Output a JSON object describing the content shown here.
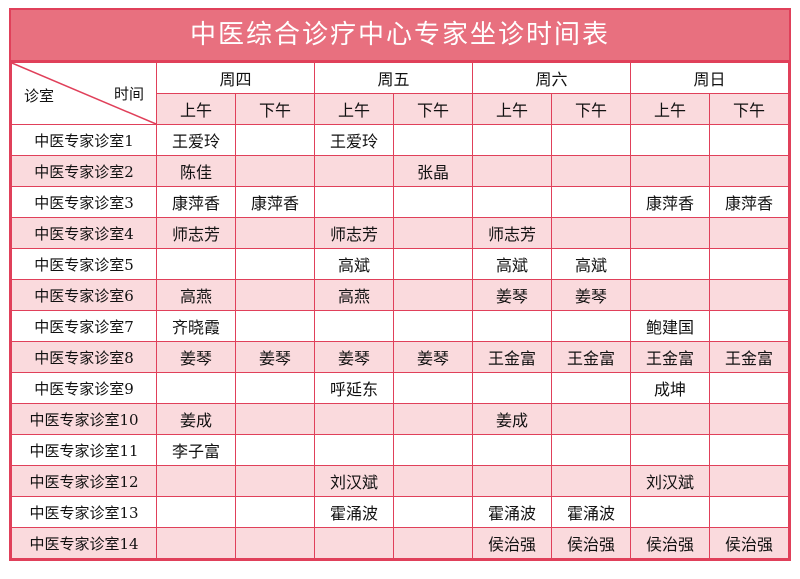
{
  "title": "中医综合诊疗中心专家坐诊时间表",
  "corner": {
    "left": "诊室",
    "right": "时间"
  },
  "days": [
    "周四",
    "周五",
    "周六",
    "周日"
  ],
  "halves": [
    "上午",
    "下午",
    "上午",
    "下午",
    "上午",
    "下午",
    "上午",
    "下午"
  ],
  "rows": [
    {
      "room": "中医专家诊室1",
      "cells": [
        "王爱玲",
        "",
        "王爱玲",
        "",
        "",
        "",
        "",
        ""
      ]
    },
    {
      "room": "中医专家诊室2",
      "cells": [
        "陈佳",
        "",
        "",
        "张晶",
        "",
        "",
        "",
        ""
      ]
    },
    {
      "room": "中医专家诊室3",
      "cells": [
        "康萍香",
        "康萍香",
        "",
        "",
        "",
        "",
        "康萍香",
        "康萍香"
      ]
    },
    {
      "room": "中医专家诊室4",
      "cells": [
        "师志芳",
        "",
        "师志芳",
        "",
        "师志芳",
        "",
        "",
        ""
      ]
    },
    {
      "room": "中医专家诊室5",
      "cells": [
        "",
        "",
        "高斌",
        "",
        "高斌",
        "高斌",
        "",
        ""
      ]
    },
    {
      "room": "中医专家诊室6",
      "cells": [
        "高燕",
        "",
        "高燕",
        "",
        "姜琴",
        "姜琴",
        "",
        ""
      ]
    },
    {
      "room": "中医专家诊室7",
      "cells": [
        "齐晓霞",
        "",
        "",
        "",
        "",
        "",
        "鲍建国",
        ""
      ]
    },
    {
      "room": "中医专家诊室8",
      "cells": [
        "姜琴",
        "姜琴",
        "姜琴",
        "姜琴",
        "王金富",
        "王金富",
        "王金富",
        "王金富"
      ]
    },
    {
      "room": "中医专家诊室9",
      "cells": [
        "",
        "",
        "呼延东",
        "",
        "",
        "",
        "成坤",
        ""
      ]
    },
    {
      "room": "中医专家诊室10",
      "cells": [
        "姜成",
        "",
        "",
        "",
        "姜成",
        "",
        "",
        ""
      ]
    },
    {
      "room": "中医专家诊室11",
      "cells": [
        "李子富",
        "",
        "",
        "",
        "",
        "",
        "",
        ""
      ]
    },
    {
      "room": "中医专家诊室12",
      "cells": [
        "",
        "",
        "刘汉斌",
        "",
        "",
        "",
        "刘汉斌",
        ""
      ]
    },
    {
      "room": "中医专家诊室13",
      "cells": [
        "",
        "",
        "霍涌波",
        "",
        "霍涌波",
        "霍涌波",
        "",
        ""
      ]
    },
    {
      "room": "中医专家诊室14",
      "cells": [
        "",
        "",
        "",
        "",
        "侯治强",
        "侯治强",
        "侯治强",
        "侯治强"
      ]
    }
  ],
  "colors": {
    "header": "#e8707f",
    "border": "#e0405a",
    "stripe": "#fadadd"
  }
}
